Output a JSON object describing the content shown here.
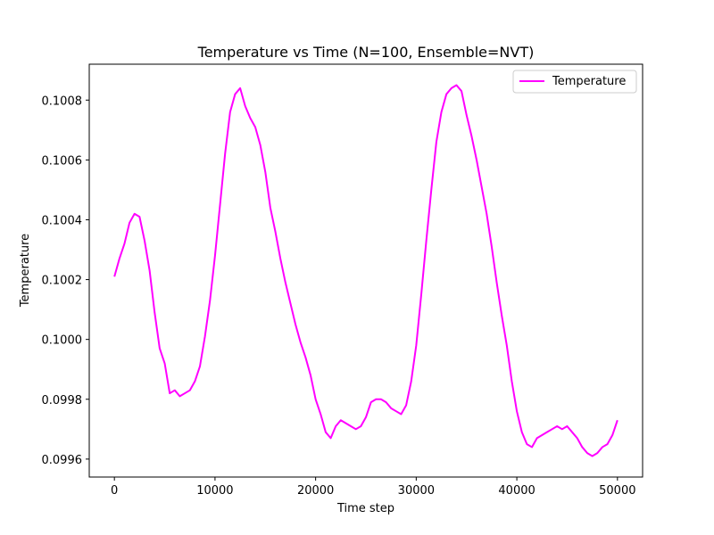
{
  "chart_data": {
    "type": "line",
    "title": "Temperature vs Time (N=100, Ensemble=NVT)",
    "xlabel": "Time step",
    "ylabel": "Temperature",
    "xlim": [
      -2500,
      52500
    ],
    "ylim": [
      0.09954,
      0.10092
    ],
    "xticks": [
      0,
      10000,
      20000,
      30000,
      40000,
      50000
    ],
    "xtick_labels": [
      "0",
      "10000",
      "20000",
      "30000",
      "40000",
      "50000"
    ],
    "yticks": [
      0.0996,
      0.0998,
      0.1,
      0.1002,
      0.1004,
      0.1006,
      0.1008
    ],
    "ytick_labels": [
      "0.0996",
      "0.0998",
      "0.1000",
      "0.1002",
      "0.1004",
      "0.1006",
      "0.1008"
    ],
    "grid": false,
    "legend_position": "top-right",
    "series": [
      {
        "name": "Temperature",
        "color": "#ff00ff",
        "x": [
          0,
          500,
          1000,
          1500,
          2000,
          2500,
          3000,
          3500,
          4000,
          4500,
          5000,
          5500,
          6000,
          6500,
          7000,
          7500,
          8000,
          8500,
          9000,
          9500,
          10000,
          10500,
          11000,
          11500,
          12000,
          12500,
          13000,
          13500,
          14000,
          14500,
          15000,
          15500,
          16000,
          16500,
          17000,
          17500,
          18000,
          18500,
          19000,
          19500,
          20000,
          20500,
          21000,
          21500,
          22000,
          22500,
          23000,
          23500,
          24000,
          24500,
          25000,
          25500,
          26000,
          26500,
          27000,
          27500,
          28000,
          28500,
          29000,
          29500,
          30000,
          30500,
          31000,
          31500,
          32000,
          32500,
          33000,
          33500,
          34000,
          34500,
          35000,
          35500,
          36000,
          36500,
          37000,
          37500,
          38000,
          38500,
          39000,
          39500,
          40000,
          40500,
          41000,
          41500,
          42000,
          42500,
          43000,
          43500,
          44000,
          44500,
          45000,
          45500,
          46000,
          46500,
          47000,
          47500,
          48000,
          48500,
          49000,
          49500,
          50000
        ],
        "values": [
          0.10021,
          0.10027,
          0.10032,
          0.10039,
          0.10042,
          0.10041,
          0.10033,
          0.10023,
          0.10009,
          0.09997,
          0.09992,
          0.09982,
          0.09983,
          0.09981,
          0.09982,
          0.09983,
          0.09986,
          0.09991,
          0.10001,
          0.10013,
          0.10028,
          0.10045,
          0.10062,
          0.10076,
          0.10082,
          0.10084,
          0.10078,
          0.10074,
          0.10071,
          0.10065,
          0.10056,
          0.10044,
          0.10036,
          0.10027,
          0.10019,
          0.10012,
          0.10005,
          0.09999,
          0.09994,
          0.09988,
          0.0998,
          0.09975,
          0.09969,
          0.09967,
          0.09971,
          0.09973,
          0.09972,
          0.09971,
          0.0997,
          0.09971,
          0.09974,
          0.09979,
          0.0998,
          0.0998,
          0.09979,
          0.09977,
          0.09976,
          0.09975,
          0.09978,
          0.09986,
          0.09998,
          0.10015,
          0.10033,
          0.1005,
          0.10066,
          0.10076,
          0.10082,
          0.10084,
          0.10085,
          0.10083,
          0.10075,
          0.10068,
          0.1006,
          0.10051,
          0.10042,
          0.10031,
          0.10019,
          0.10008,
          0.09998,
          0.09986,
          0.09976,
          0.09969,
          0.09965,
          0.09964,
          0.09967,
          0.09968,
          0.09969,
          0.0997,
          0.09971,
          0.0997,
          0.09971,
          0.09969,
          0.09967,
          0.09964,
          0.09962,
          0.09961,
          0.09962,
          0.09964,
          0.09965,
          0.09968,
          0.09973
        ]
      }
    ]
  }
}
